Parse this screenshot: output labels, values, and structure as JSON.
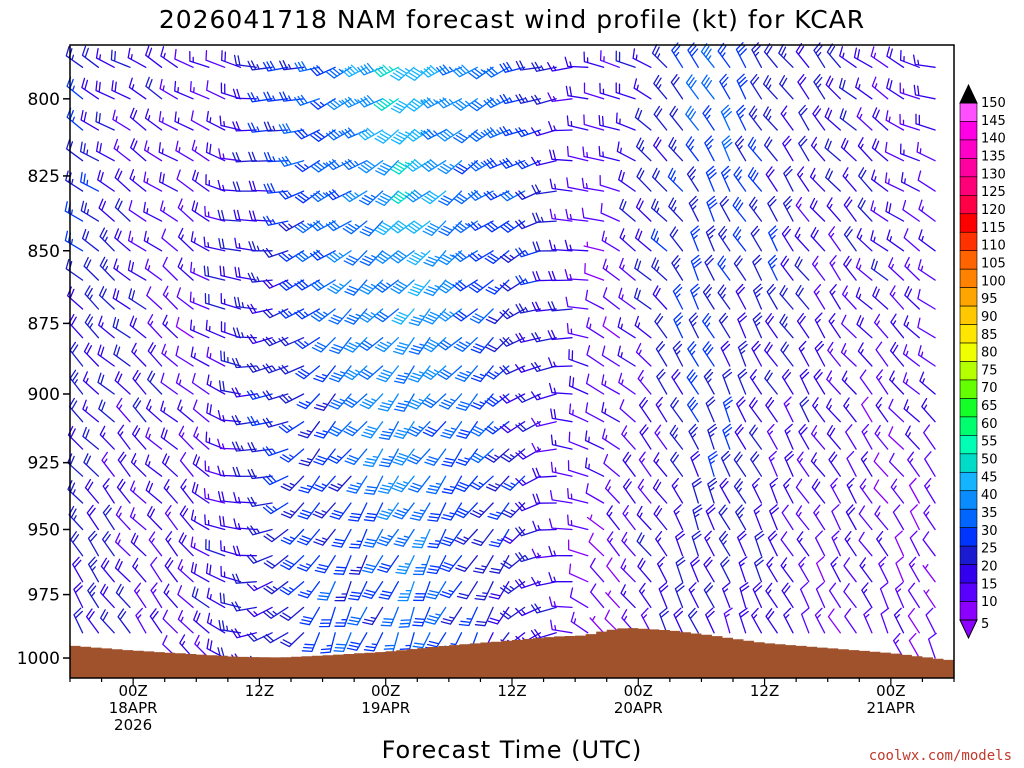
{
  "credit": "coolwx.com/models",
  "colors": {
    "terrain": "#a0522d",
    "frame": "#000000",
    "credit": "#c0392b"
  },
  "chart_data": {
    "type": "wind-barb-time-height",
    "title": "2026041718 NAM forecast wind profile (kt) for KCAR",
    "xlabel": "Forecast Time (UTC)",
    "ylabel": "",
    "y_scale": "log",
    "y_inverted": true,
    "ylim": [
      1008,
      783
    ],
    "xlim_hours": [
      -6,
      78
    ],
    "y_ticks": [
      800,
      825,
      850,
      875,
      900,
      925,
      950,
      975,
      1000
    ],
    "x_ticks": [
      {
        "hour": 0,
        "lines": [
          "00Z",
          "18APR",
          "2026"
        ]
      },
      {
        "hour": 12,
        "lines": [
          "12Z"
        ]
      },
      {
        "hour": 24,
        "lines": [
          "00Z",
          "19APR"
        ]
      },
      {
        "hour": 36,
        "lines": [
          "12Z"
        ]
      },
      {
        "hour": 48,
        "lines": [
          "00Z",
          "20APR"
        ]
      },
      {
        "hour": 60,
        "lines": [
          "12Z"
        ]
      },
      {
        "hour": 72,
        "lines": [
          "00Z",
          "21APR"
        ]
      }
    ],
    "colorbar": {
      "ticks": [
        5,
        10,
        15,
        20,
        25,
        30,
        35,
        40,
        45,
        50,
        55,
        60,
        65,
        70,
        75,
        80,
        85,
        90,
        95,
        100,
        105,
        110,
        115,
        120,
        125,
        130,
        135,
        140,
        145,
        150
      ],
      "colors": [
        "#8b00ff",
        "#5a00ff",
        "#3300ee",
        "#1a1ad0",
        "#0035ff",
        "#0066ff",
        "#0a8cff",
        "#14b4ff",
        "#00dcc8",
        "#00ffb4",
        "#00ff6e",
        "#14ff28",
        "#64ff00",
        "#b4ff00",
        "#f0ff00",
        "#ffe600",
        "#ffc800",
        "#ffa500",
        "#ff8200",
        "#ff6400",
        "#ff3200",
        "#ff0000",
        "#ff0046",
        "#ff0078",
        "#ff00a0",
        "#ff00c8",
        "#ff00e6",
        "#ff50ff"
      ]
    },
    "surface_pressure": [
      {
        "hour": -6,
        "p": 995
      },
      {
        "hour": 0,
        "p": 997
      },
      {
        "hour": 6,
        "p": 998.5
      },
      {
        "hour": 10,
        "p": 999.5
      },
      {
        "hour": 14,
        "p": 999.8
      },
      {
        "hour": 18,
        "p": 999
      },
      {
        "hour": 24,
        "p": 997.5
      },
      {
        "hour": 30,
        "p": 995
      },
      {
        "hour": 36,
        "p": 993
      },
      {
        "hour": 40,
        "p": 991.5
      },
      {
        "hour": 43,
        "p": 991
      },
      {
        "hour": 45,
        "p": 989
      },
      {
        "hour": 47,
        "p": 988
      },
      {
        "hour": 51,
        "p": 989
      },
      {
        "hour": 55,
        "p": 991
      },
      {
        "hour": 60,
        "p": 994
      },
      {
        "hour": 66,
        "p": 996
      },
      {
        "hour": 72,
        "p": 998
      },
      {
        "hour": 78,
        "p": 1001
      }
    ],
    "barb_levels": [
      790,
      800,
      810,
      820,
      830,
      840,
      850,
      860,
      870,
      880,
      890,
      900,
      910,
      920,
      930,
      940,
      950,
      960,
      970,
      980,
      990,
      1000
    ],
    "barb_interval_hours": 1.5,
    "wind_regimes": [
      {
        "hour": -6,
        "upper": {
          "speed": 25,
          "dir": 300
        },
        "lower": {
          "speed": 20,
          "dir": 330
        }
      },
      {
        "hour": 6,
        "upper": {
          "speed": 12,
          "dir": 300
        },
        "lower": {
          "speed": 15,
          "dir": 320
        }
      },
      {
        "hour": 18,
        "upper": {
          "speed": 30,
          "dir": 250
        },
        "lower": {
          "speed": 25,
          "dir": 200
        }
      },
      {
        "hour": 27,
        "upper": {
          "speed": 45,
          "dir": 235
        },
        "lower": {
          "speed": 30,
          "dir": 200
        }
      },
      {
        "hour": 36,
        "upper": {
          "speed": 30,
          "dir": 245
        },
        "lower": {
          "speed": 20,
          "dir": 210
        }
      },
      {
        "hour": 45,
        "upper": {
          "speed": 12,
          "dir": 280
        },
        "lower": {
          "speed": 10,
          "dir": 320
        }
      },
      {
        "hour": 54,
        "upper": {
          "speed": 30,
          "dir": 330
        },
        "lower": {
          "speed": 20,
          "dir": 340
        }
      },
      {
        "hour": 66,
        "upper": {
          "speed": 20,
          "dir": 320
        },
        "lower": {
          "speed": 12,
          "dir": 330
        }
      },
      {
        "hour": 78,
        "upper": {
          "speed": 15,
          "dir": 280
        },
        "lower": {
          "speed": 10,
          "dir": 340
        }
      }
    ]
  }
}
